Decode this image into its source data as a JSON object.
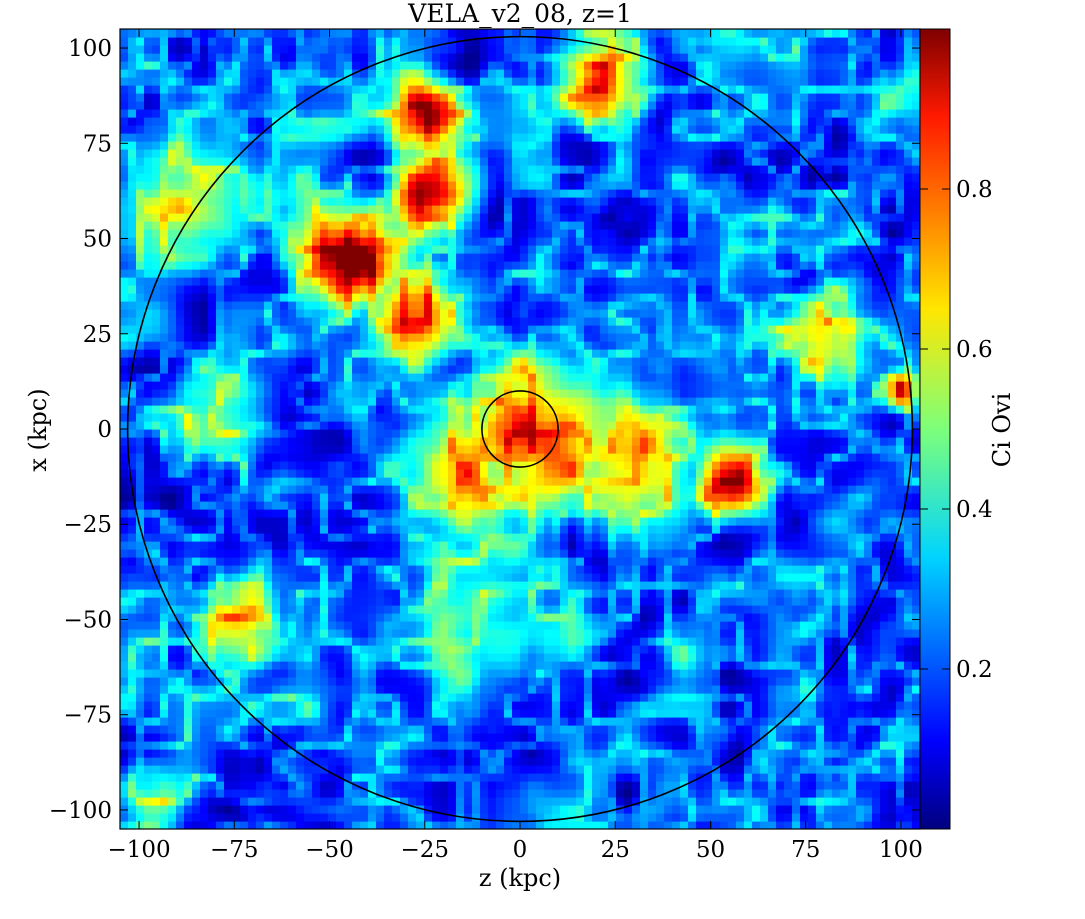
{
  "chart_data": {
    "type": "heatmap",
    "title": "VELA_v2_08, z=1",
    "xlabel": "z  (kpc)",
    "ylabel": "x  (kpc)",
    "xlim": [
      -105,
      105
    ],
    "ylim": [
      -105,
      105
    ],
    "x_ticks": [
      -100,
      -75,
      -50,
      -25,
      0,
      25,
      50,
      75,
      100
    ],
    "y_ticks": [
      -100,
      -75,
      -50,
      -25,
      0,
      25,
      50,
      75,
      100
    ],
    "x_tick_labels": [
      "−100",
      "−75",
      "−50",
      "−25",
      "0",
      "25",
      "50",
      "75",
      "100"
    ],
    "y_tick_labels": [
      "−100",
      "−75",
      "−50",
      "−25",
      "0",
      "25",
      "50",
      "75",
      "100"
    ],
    "colorbar": {
      "label": "Ci Ovi",
      "colormap": "jet",
      "range": [
        0,
        1
      ],
      "ticks": [
        0.2,
        0.4,
        0.6,
        0.8
      ],
      "tick_labels": [
        "0.2",
        "0.4",
        "0.6",
        "0.8"
      ]
    },
    "circles": [
      {
        "center": [
          0,
          0
        ],
        "radius": 103
      },
      {
        "center": [
          0,
          0
        ],
        "radius": 10
      }
    ],
    "hotspots": [
      {
        "x": 0,
        "y": 0,
        "sigma": 9,
        "value": 0.95
      },
      {
        "x": 5,
        "y": -2,
        "sigma": 16,
        "value": 0.82
      },
      {
        "x": 30,
        "y": -12,
        "sigma": 14,
        "value": 0.7
      },
      {
        "x": 55,
        "y": -14,
        "sigma": 8,
        "value": 0.88
      },
      {
        "x": -45,
        "y": 46,
        "sigma": 11,
        "value": 0.95
      },
      {
        "x": -25,
        "y": 82,
        "sigma": 8,
        "value": 0.9
      },
      {
        "x": -22,
        "y": 62,
        "sigma": 9,
        "value": 0.82
      },
      {
        "x": -28,
        "y": 30,
        "sigma": 10,
        "value": 0.72
      },
      {
        "x": -15,
        "y": -10,
        "sigma": 16,
        "value": 0.6
      },
      {
        "x": 22,
        "y": 92,
        "sigma": 10,
        "value": 0.68
      },
      {
        "x": -75,
        "y": -52,
        "sigma": 9,
        "value": 0.65
      },
      {
        "x": 80,
        "y": 25,
        "sigma": 10,
        "value": 0.55
      },
      {
        "x": 100,
        "y": 10,
        "sigma": 4,
        "value": 0.78
      },
      {
        "x": -80,
        "y": 3,
        "sigma": 12,
        "value": 0.48
      },
      {
        "x": -85,
        "y": 60,
        "sigma": 18,
        "value": 0.45
      },
      {
        "x": -10,
        "y": -45,
        "sigma": 20,
        "value": 0.38
      },
      {
        "x": 60,
        "y": 45,
        "sigma": 15,
        "value": 0.3
      },
      {
        "x": 50,
        "y": 80,
        "sigma": 15,
        "value": 0.2
      },
      {
        "x": 70,
        "y": -70,
        "sigma": 18,
        "value": 0.15
      },
      {
        "x": -95,
        "y": -95,
        "sigma": 10,
        "value": 0.4
      }
    ]
  }
}
